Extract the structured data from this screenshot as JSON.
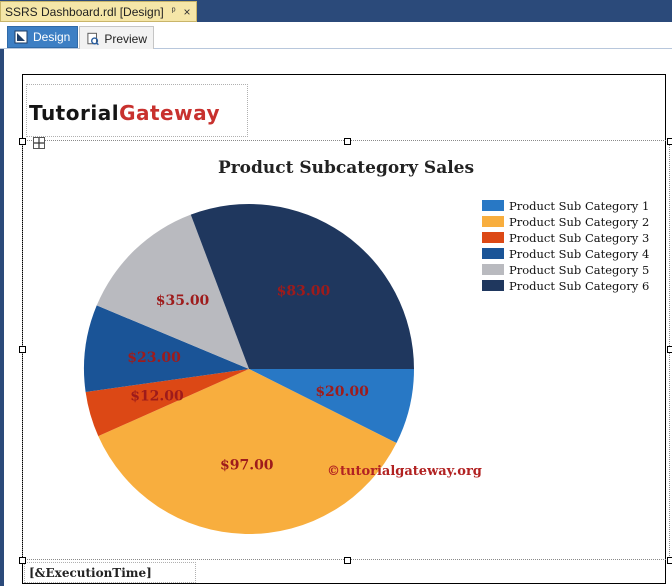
{
  "document_tab": {
    "title": "SSRS Dashboard.rdl [Design]",
    "pin": "ᵖ",
    "close": "×"
  },
  "view_tabs": [
    {
      "label": "Design"
    },
    {
      "label": "Preview"
    }
  ],
  "logo": {
    "part1": "Tutorial",
    "part2": "Gateway"
  },
  "footer": {
    "expression": "[&ExecutionTime]"
  },
  "chart_data": {
    "type": "pie",
    "title": "Product Subcategory Sales",
    "categories": [
      "Product Sub Category 1",
      "Product Sub Category 2",
      "Product Sub Category 3",
      "Product Sub Category 4",
      "Product Sub Category 5",
      "Product Sub Category 6"
    ],
    "values": [
      20,
      97,
      12,
      23,
      35,
      83
    ],
    "data_labels": [
      "$20.00",
      "$97.00",
      "$12.00",
      "$23.00",
      "$35.00",
      "$83.00"
    ],
    "colors": [
      "#2878c5",
      "#f8ae3e",
      "#dc4815",
      "#1a5497",
      "#b9babf",
      "#1f375e"
    ],
    "legend_position": "top-right",
    "watermark": "©tutorialgateway.org"
  }
}
